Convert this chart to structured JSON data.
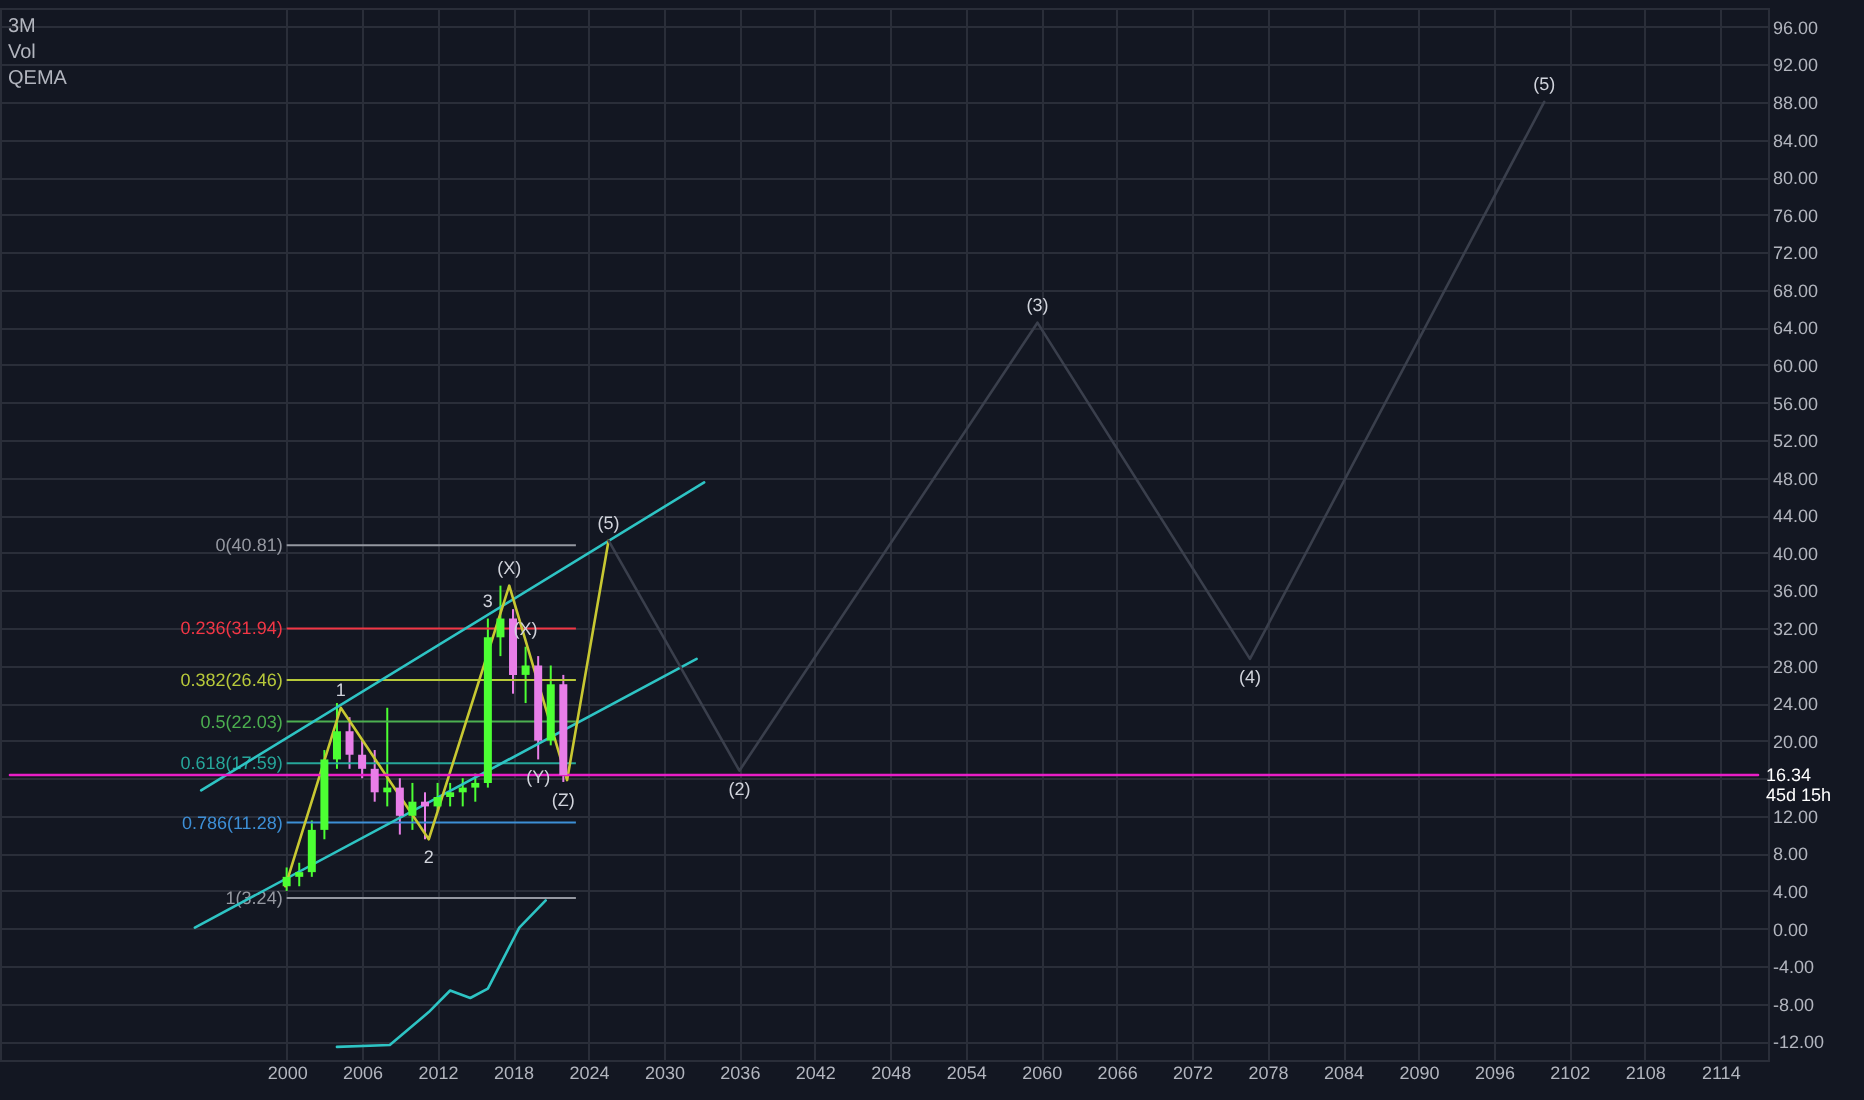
{
  "chart_data": {
    "type": "candlestick",
    "title": "3M",
    "x": [
      2000,
      2001,
      2002,
      2003,
      2004,
      2005,
      2006,
      2007,
      2008,
      2009,
      2010,
      2011,
      2012,
      2013,
      2014,
      2015,
      2016,
      2017,
      2018,
      2019,
      2020,
      2021,
      2022
    ],
    "ohlc": [
      [
        4.5,
        6.5,
        4,
        5.5
      ],
      [
        5.5,
        7,
        4.5,
        6
      ],
      [
        6,
        11.5,
        5.5,
        10.5
      ],
      [
        10.5,
        19,
        9.5,
        18
      ],
      [
        18,
        24,
        17,
        21
      ],
      [
        21,
        22.5,
        17,
        18.5
      ],
      [
        18.5,
        20,
        16,
        17
      ],
      [
        17,
        19,
        13.5,
        14.5
      ],
      [
        14.5,
        23.5,
        13,
        15
      ],
      [
        15,
        16,
        10,
        12
      ],
      [
        12,
        15.5,
        10.5,
        13.5
      ],
      [
        13.5,
        14.5,
        9.5,
        13
      ],
      [
        13,
        15.5,
        12.5,
        14
      ],
      [
        14,
        15.5,
        13,
        14.5
      ],
      [
        14.5,
        16,
        13,
        15
      ],
      [
        15,
        16.5,
        13.5,
        15.5
      ],
      [
        15.5,
        33,
        15,
        31
      ],
      [
        31,
        36.5,
        29,
        33
      ],
      [
        33,
        34,
        25,
        27
      ],
      [
        27,
        30,
        24,
        28
      ],
      [
        28,
        29,
        18,
        20
      ],
      [
        20,
        28,
        19.5,
        26
      ],
      [
        26,
        27,
        15.6,
        16.34
      ]
    ],
    "colors": [
      "#4cff33",
      "#4cff33",
      "#4cff33",
      "#4cff33",
      "#4cff33",
      "#e87ee8",
      "#e87ee8",
      "#e87ee8",
      "#4cff33",
      "#e87ee8",
      "#4cff33",
      "#e87ee8",
      "#4cff33",
      "#4cff33",
      "#4cff33",
      "#4cff33",
      "#4cff33",
      "#4cff33",
      "#e87ee8",
      "#4cff33",
      "#e87ee8",
      "#4cff33",
      "#e87ee8"
    ],
    "series": [
      {
        "type": "line",
        "color": "#2ec4c4",
        "x": [
          1993.2,
          2033.2
        ],
        "values": [
          14.7,
          47.5
        ]
      },
      {
        "type": "line",
        "color": "#2ec4c4",
        "x": [
          1992.7,
          2032.6
        ],
        "values": [
          0.1,
          28.7
        ]
      },
      {
        "type": "line",
        "color": "#c8c832",
        "x": [
          1999.9,
          2004.3,
          2011.3,
          2017.7,
          2022.3,
          2025.6
        ],
        "values": [
          4.5,
          23.5,
          9.5,
          36.5,
          15.8,
          41.3
        ]
      },
      {
        "type": "line",
        "color": "#3a3f4c",
        "x": [
          2025.6,
          2036,
          2059.7,
          2076.6,
          2100
        ],
        "values": [
          41.3,
          16.8,
          64.5,
          28.7,
          88
        ]
      },
      {
        "type": "line",
        "color": "#e91ec7",
        "x": [
          1978,
          2117
        ],
        "values": [
          16.34,
          16.34
        ]
      },
      {
        "type": "line",
        "color": "#2ec4c4",
        "x": [
          2004,
          2008.2,
          2011.3,
          2013,
          2014.6,
          2016,
          2018.5,
          2020.6
        ],
        "values": [
          -12.6,
          -12.4,
          -8.9,
          -6.6,
          -7.4,
          -6.4,
          0.1,
          3
        ]
      }
    ],
    "ref_lines": [
      {
        "axis": "y",
        "value": 40.81,
        "label": "0(40.81)",
        "color": "#9598a1"
      },
      {
        "axis": "y",
        "value": 31.94,
        "label": "0.236(31.94)",
        "color": "#f23645"
      },
      {
        "axis": "y",
        "value": 26.46,
        "label": "0.382(26.46)",
        "color": "#b8c93a"
      },
      {
        "axis": "y",
        "value": 22.03,
        "label": "0.5(22.03)",
        "color": "#4caf50"
      },
      {
        "axis": "y",
        "value": 17.59,
        "label": "0.618(17.59)",
        "color": "#26a69a"
      },
      {
        "axis": "y",
        "value": 11.28,
        "label": "0.786(11.28)",
        "color": "#3d8fd6"
      },
      {
        "axis": "y",
        "value": 3.24,
        "label": "1(3.24)",
        "color": "#9598a1"
      }
    ],
    "annotations": [
      "Vol",
      "QEMA",
      {
        "text": "16.34",
        "x": 2117,
        "y": 16.34
      },
      {
        "text": "45d 15h",
        "x": 2117,
        "y": 16.34
      },
      {
        "text": "1",
        "x": 2004.3,
        "y": 23.5
      },
      {
        "text": "2",
        "x": 2011.3,
        "y": 9.5
      },
      {
        "text": "3",
        "x": 2016,
        "y": 33
      },
      {
        "text": "(X)",
        "x": 2017.7,
        "y": 36.5
      },
      {
        "text": "(X)",
        "x": 2019,
        "y": 30
      },
      {
        "text": "(Y)",
        "x": 2020,
        "y": 18
      },
      {
        "text": "(Z)",
        "x": 2022,
        "y": 15.6
      },
      {
        "text": "(5)",
        "x": 2025.6,
        "y": 41.3
      },
      {
        "text": "(2)",
        "x": 2036,
        "y": 16.8
      },
      {
        "text": "(3)",
        "x": 2059.7,
        "y": 64.5
      },
      {
        "text": "(4)",
        "x": 2076.6,
        "y": 28.7
      },
      {
        "text": "(5)",
        "x": 2100,
        "y": 88
      }
    ],
    "xlim": [
      1978,
      2117
    ],
    "ylim": [
      -14,
      98
    ],
    "xticks": [
      2000,
      2006,
      2012,
      2018,
      2024,
      2030,
      2036,
      2042,
      2048,
      2054,
      2060,
      2066,
      2072,
      2078,
      2084,
      2090,
      2096,
      2102,
      2108,
      2114
    ],
    "yticks": [
      {
        "value": -12,
        "label": "-12.00"
      },
      {
        "value": -8,
        "label": "-8.00"
      },
      {
        "value": -4,
        "label": "-4.00"
      },
      {
        "value": 0,
        "label": "0.00"
      },
      {
        "value": 4,
        "label": "4.00"
      },
      {
        "value": 8,
        "label": "8.00"
      },
      {
        "value": 12,
        "label": "12.00"
      },
      {
        "value": 16,
        "label": null
      },
      {
        "value": 20,
        "label": "20.00"
      },
      {
        "value": 24,
        "label": "24.00"
      },
      {
        "value": 28,
        "label": "28.00"
      },
      {
        "value": 32,
        "label": "32.00"
      },
      {
        "value": 36,
        "label": "36.00"
      },
      {
        "value": 40,
        "label": "40.00"
      },
      {
        "value": 44,
        "label": "44.00"
      },
      {
        "value": 48,
        "label": "48.00"
      },
      {
        "value": 52,
        "label": "52.00"
      },
      {
        "value": 56,
        "label": "56.00"
      },
      {
        "value": 60,
        "label": "60.00"
      },
      {
        "value": 64,
        "label": "64.00"
      },
      {
        "value": 68,
        "label": "68.00"
      },
      {
        "value": 72,
        "label": "72.00"
      },
      {
        "value": 76,
        "label": "76.00"
      },
      {
        "value": 80,
        "label": "80.00"
      },
      {
        "value": 84,
        "label": "84.00"
      },
      {
        "value": 88,
        "label": "88.00"
      },
      {
        "value": 92,
        "label": "92.00"
      },
      {
        "value": 96,
        "label": "96.00"
      }
    ],
    "grid": true
  }
}
